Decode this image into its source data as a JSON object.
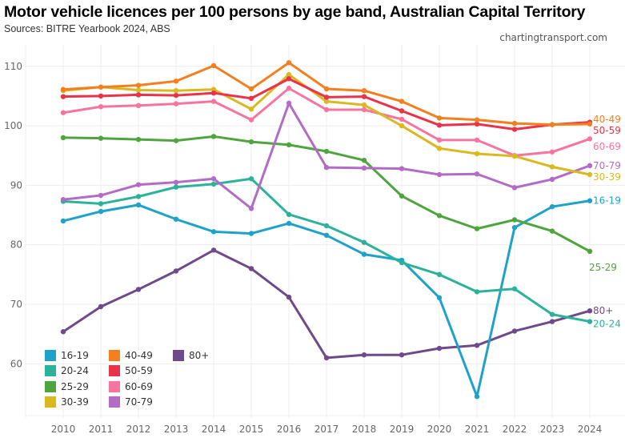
{
  "chart_data": {
    "type": "line",
    "title": "Motor vehicle licences per 100 persons by age band, Australian Capital Territory",
    "subtitle": "Sources: BITRE Yearbook 2024, ABS",
    "credit": "chartingtransport.com",
    "xlabel": "",
    "ylabel": "",
    "x": [
      2010,
      2011,
      2012,
      2013,
      2014,
      2015,
      2016,
      2017,
      2018,
      2019,
      2020,
      2021,
      2022,
      2023,
      2024
    ],
    "x_tick_labels": [
      "2010",
      "2011",
      "2012",
      "2013",
      "2014",
      "2015",
      "2016",
      "2017",
      "2018",
      "2019",
      "2020",
      "2021",
      "2022",
      "2023",
      "2024"
    ],
    "ylim": [
      51.3,
      113.6
    ],
    "y_ticks": [
      60,
      70,
      80,
      90,
      100,
      110
    ],
    "y_tick_labels": [
      "60",
      "70",
      "80",
      "90",
      "100",
      "110"
    ],
    "grid": true,
    "legend_placement": "bottom-left",
    "series": [
      {
        "name": "16-19",
        "color": "#1fa2c9",
        "values": [
          84.0,
          85.6,
          86.7,
          84.3,
          82.2,
          81.9,
          83.6,
          81.6,
          78.4,
          77.4,
          71.1,
          54.5,
          82.9,
          86.4,
          87.4
        ]
      },
      {
        "name": "20-24",
        "color": "#2bb39a",
        "values": [
          87.3,
          86.9,
          88.1,
          89.7,
          90.2,
          91.1,
          85.1,
          83.2,
          80.4,
          77.0,
          75.0,
          72.1,
          72.6,
          68.3,
          67.1
        ]
      },
      {
        "name": "25-29",
        "color": "#4ea53e",
        "values": [
          98.0,
          97.9,
          97.7,
          97.5,
          98.2,
          97.3,
          96.8,
          95.7,
          94.2,
          88.2,
          84.9,
          82.7,
          84.2,
          82.3,
          78.9
        ]
      },
      {
        "name": "30-39",
        "color": "#d9b820",
        "values": [
          105.9,
          106.5,
          106.0,
          105.9,
          106.1,
          102.8,
          108.6,
          104.1,
          103.5,
          100.0,
          96.2,
          95.3,
          94.9,
          93.1,
          91.8
        ]
      },
      {
        "name": "40-49",
        "color": "#f47f1e",
        "values": [
          106.1,
          106.5,
          106.8,
          107.5,
          110.1,
          106.2,
          110.6,
          106.2,
          105.9,
          104.1,
          101.3,
          101.0,
          100.4,
          100.2,
          100.3
        ]
      },
      {
        "name": "50-59",
        "color": "#e8334a",
        "values": [
          104.9,
          105.0,
          105.2,
          105.1,
          105.5,
          104.6,
          107.9,
          104.8,
          104.9,
          102.5,
          100.1,
          100.3,
          99.4,
          100.2,
          100.6
        ]
      },
      {
        "name": "60-69",
        "color": "#f874a0",
        "values": [
          102.2,
          103.2,
          103.4,
          103.7,
          104.1,
          101.0,
          106.3,
          102.7,
          102.7,
          101.1,
          97.6,
          97.6,
          95.0,
          95.6,
          97.8
        ]
      },
      {
        "name": "70-79",
        "color": "#b36bc6",
        "values": [
          87.6,
          88.3,
          90.1,
          90.5,
          91.1,
          86.1,
          103.8,
          93.0,
          92.9,
          92.8,
          91.8,
          91.9,
          89.6,
          91.0,
          93.3
        ]
      },
      {
        "name": "80+",
        "color": "#6e4a8a",
        "values": [
          65.4,
          69.6,
          72.5,
          75.6,
          79.1,
          76.0,
          71.2,
          61.0,
          61.5,
          61.5,
          62.6,
          63.1,
          65.5,
          67.1,
          68.9
        ]
      }
    ],
    "end_labels": [
      "40-49",
      "50-59",
      "60-69",
      "70-79",
      "30-39",
      "16-19",
      "25-29",
      "80+",
      "20-24"
    ]
  }
}
